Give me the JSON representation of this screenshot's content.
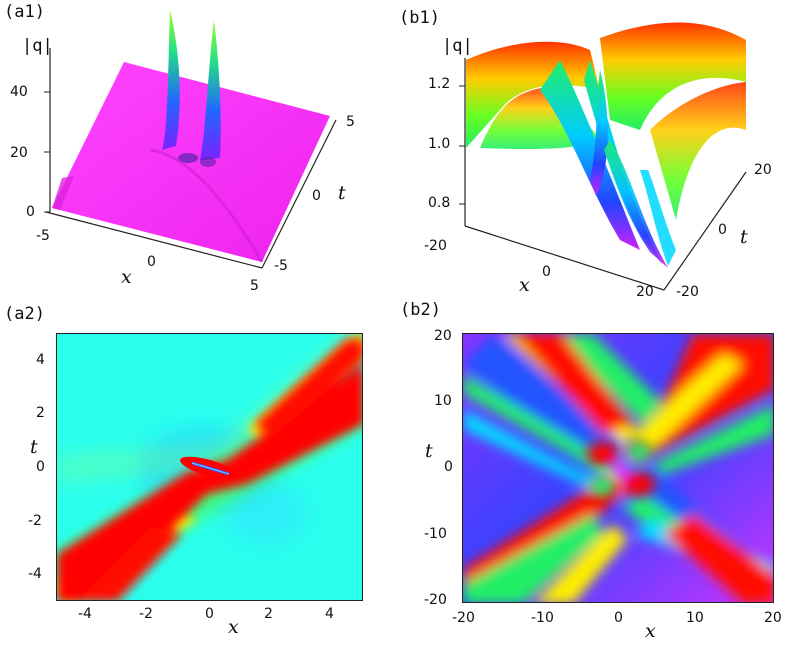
{
  "chart_data": [
    {
      "panel": "(a1)",
      "type": "surface3d",
      "zlabel": "|q|",
      "xlabel": "x",
      "ylabel": "t",
      "x_ticks": [
        "-5",
        "0",
        "5"
      ],
      "t_ticks": [
        "-5",
        "0",
        "5"
      ],
      "z_ticks": [
        "0",
        "20",
        "40"
      ],
      "xlim": [
        -5,
        5
      ],
      "tlim": [
        -5,
        5
      ],
      "zlim": [
        0,
        50
      ],
      "colors": [
        "#ff33ff",
        "#2255ff",
        "#00ff66"
      ]
    },
    {
      "panel": "(b1)",
      "type": "surface3d",
      "zlabel": "|q|",
      "xlabel": "x",
      "ylabel": "t",
      "x_ticks": [
        "-20",
        "0",
        "20"
      ],
      "t_ticks": [
        "-20",
        "0",
        "20"
      ],
      "z_ticks": [
        "0.8",
        "1.0",
        "1.2"
      ],
      "xlim": [
        -20,
        20
      ],
      "tlim": [
        -20,
        20
      ],
      "zlim": [
        0.7,
        1.3
      ],
      "colors": [
        "#ff2200",
        "#ffee00",
        "#22ee22",
        "#00ddff",
        "#3344ff",
        "#ff33ff"
      ]
    },
    {
      "panel": "(a2)",
      "type": "heatmap",
      "xlabel": "x",
      "ylabel": "t",
      "x_ticks": [
        "-4",
        "-2",
        "0",
        "2",
        "4"
      ],
      "y_ticks": [
        "4",
        "2",
        "0",
        "-2",
        "-4"
      ],
      "xlim": [
        -5,
        5
      ],
      "ylim": [
        -5,
        5
      ],
      "colors": [
        "#00ffee",
        "#ff0000",
        "#ffee00",
        "#3355ff"
      ]
    },
    {
      "panel": "(b2)",
      "type": "heatmap",
      "xlabel": "x",
      "ylabel": "t",
      "x_ticks": [
        "-20",
        "-10",
        "0",
        "10",
        "20"
      ],
      "y_ticks": [
        "20",
        "10",
        "0",
        "-10",
        "-20"
      ],
      "xlim": [
        -20,
        20
      ],
      "ylim": [
        -20,
        20
      ],
      "colors": [
        "#ff0000",
        "#ffee00",
        "#22ee22",
        "#00ffff",
        "#3344ff",
        "#cc33ff"
      ]
    }
  ]
}
